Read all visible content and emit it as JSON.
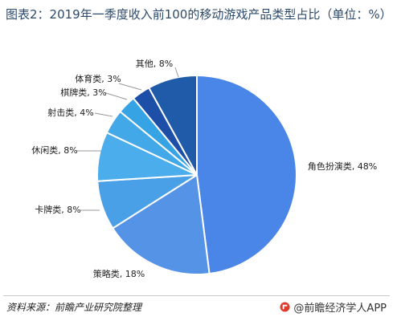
{
  "chart_data": {
    "type": "pie",
    "title": "图表2：2019年一季度收入前100的移动游戏产品类型占比（单位：%）",
    "slices": [
      {
        "label": "角色扮演类",
        "value": 48,
        "display": "角色扮演类, 48%",
        "color": "#4a86e8"
      },
      {
        "label": "策略类",
        "value": 18,
        "display": "策略类, 18%",
        "color": "#5593e6"
      },
      {
        "label": "卡牌类",
        "value": 8,
        "display": "卡牌类, 8%",
        "color": "#4aa0e7"
      },
      {
        "label": "休闲类",
        "value": 8,
        "display": "休闲类, 8%",
        "color": "#4badeb"
      },
      {
        "label": "射击类",
        "value": 4,
        "display": "射击类, 4%",
        "color": "#43a8e8"
      },
      {
        "label": "棋牌类",
        "value": 3,
        "display": "棋牌类, 3%",
        "color": "#36a3e5"
      },
      {
        "label": "体育类",
        "value": 3,
        "display": "体育类, 3%",
        "color": "#1e4fa8"
      },
      {
        "label": "其他",
        "value": 8,
        "display": "其他, 8%",
        "color": "#1f5ba9"
      }
    ]
  },
  "footer": {
    "source": "资料来源：前瞻产业研究院整理",
    "brand": "@前瞻经济学人APP",
    "brand_color": "#e23b2e"
  }
}
